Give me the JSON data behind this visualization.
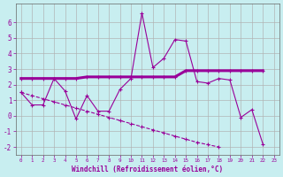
{
  "xlabel": "Windchill (Refroidissement éolien,°C)",
  "background_color": "#c8eef0",
  "line_color": "#990099",
  "grid_color": "#b0b0b0",
  "xlim": [
    -0.5,
    23.5
  ],
  "ylim": [
    -2.5,
    7.2
  ],
  "xticks": [
    0,
    1,
    2,
    3,
    4,
    5,
    6,
    7,
    8,
    9,
    10,
    11,
    12,
    13,
    14,
    15,
    16,
    17,
    18,
    19,
    20,
    21,
    22,
    23
  ],
  "yticks": [
    -2,
    -1,
    0,
    1,
    2,
    3,
    4,
    5,
    6
  ],
  "line1_y": [
    1.5,
    0.7,
    0.7,
    2.4,
    1.6,
    -0.2,
    1.3,
    0.3,
    0.3,
    1.7,
    2.4,
    6.6,
    3.1,
    3.7,
    4.9,
    4.8,
    2.2,
    2.1,
    2.4,
    2.3,
    -0.1,
    0.4,
    -1.8,
    null
  ],
  "line2_y": [
    2.4,
    2.4,
    2.4,
    2.4,
    2.4,
    2.4,
    2.5,
    2.5,
    2.5,
    2.5,
    2.5,
    2.5,
    2.5,
    2.5,
    2.5,
    2.9,
    2.9,
    2.9,
    2.9,
    2.9,
    2.9,
    2.9,
    2.9,
    null
  ],
  "line3_y": [
    1.5,
    1.3,
    1.1,
    0.9,
    0.7,
    0.5,
    0.3,
    0.1,
    -0.1,
    -0.3,
    -0.5,
    -0.7,
    -0.9,
    -1.1,
    -1.3,
    -1.5,
    -1.7,
    -1.85,
    -2.0,
    null,
    null,
    null,
    null,
    null
  ]
}
